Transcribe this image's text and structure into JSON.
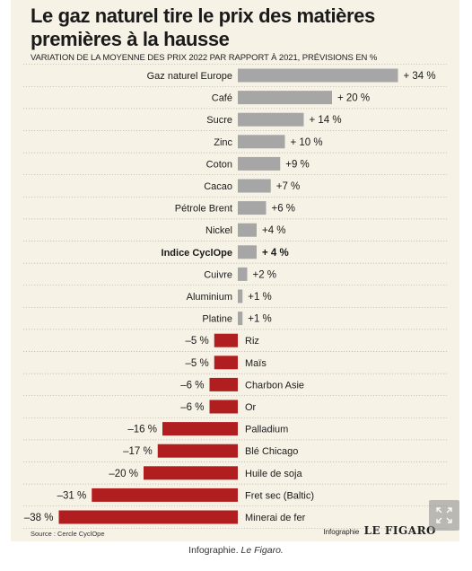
{
  "header": {
    "title": "Le gaz naturel tire le prix des matières premières à la hausse",
    "subtitle": "VARIATION DE LA MOYENNE DES PRIX 2022 PAR RAPPORT À 2021, PRÉVISIONS EN %"
  },
  "footer": {
    "source": "Source : Cercle CyclOpe",
    "brand_prefix": "Infographie",
    "brand_logo": "LE FIGARO"
  },
  "caption": {
    "prefix": "Infographie.",
    "italic": "Le Figaro."
  },
  "colors": {
    "positive": "#a6a6a6",
    "negative": "#b11e1f",
    "background": "#f7f2e6"
  },
  "icons": {
    "expand": "expand-icon"
  },
  "chart_data": {
    "type": "bar",
    "orientation": "horizontal",
    "title": "Le gaz naturel tire le prix des matières premières à la hausse",
    "subtitle": "VARIATION DE LA MOYENNE DES PRIX 2022 PAR RAPPORT À 2021, PRÉVISIONS EN %",
    "unit": "%",
    "highlighted": "Indice CyclOpe",
    "categories": [
      "Gaz naturel Europe",
      "Café",
      "Sucre",
      "Zinc",
      "Coton",
      "Cacao",
      "Pétrole Brent",
      "Nickel",
      "Indice CyclOpe",
      "Cuivre",
      "Aluminium",
      "Platine",
      "Riz",
      "Maïs",
      "Charbon Asie",
      "Or",
      "Palladium",
      "Blé Chicago",
      "Huile de soja",
      "Fret sec (Baltic)",
      "Minerai de fer"
    ],
    "values": [
      34,
      20,
      14,
      10,
      9,
      7,
      6,
      4,
      4,
      2,
      1,
      1,
      -5,
      -5,
      -6,
      -6,
      -16,
      -17,
      -20,
      -31,
      -38
    ],
    "labels": [
      "+ 34 %",
      "+ 20 %",
      "+ 14 %",
      "+ 10 %",
      "+9 %",
      "+7 %",
      "+6 %",
      "+4 %",
      "+ 4 %",
      "+2 %",
      "+1 %",
      "+1 %",
      "–5 %",
      "–5 %",
      "–6 %",
      "–6 %",
      "–16 %",
      "–17 %",
      "–20 %",
      "–31 %",
      "–38 %"
    ]
  }
}
